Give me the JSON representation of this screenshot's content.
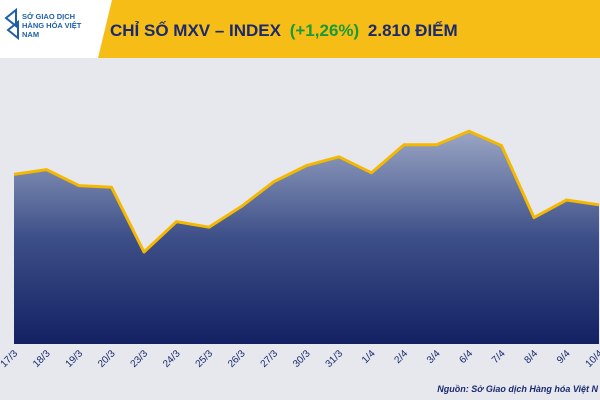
{
  "logo": "SỞ GIAO DỊCH HÀNG HÓA VIỆT NAM",
  "source": "Nguồn: Sở Giao dịch Hàng hóa Việt N",
  "chart_data": {
    "type": "area",
    "title": "CHỈ SỐ MXV – INDEX",
    "title_change": "(+1,26%)",
    "title_value": "2.810 ĐIỂM",
    "categories": [
      "17/3",
      "18/3",
      "19/3",
      "20/3",
      "23/3",
      "24/3",
      "25/3",
      "26/3",
      "27/3",
      "30/3",
      "31/3",
      "1/4",
      "2/4",
      "3/4",
      "6/4",
      "7/4",
      "8/4",
      "9/4",
      "10/4"
    ],
    "values": [
      2848,
      2854,
      2834,
      2832,
      2751,
      2789,
      2782,
      2808,
      2839,
      2859,
      2870,
      2850,
      2885,
      2885,
      2902,
      2884,
      2794,
      2816,
      2810
    ],
    "color": "#f5b800",
    "ylim": [
      2636,
      2991
    ]
  }
}
